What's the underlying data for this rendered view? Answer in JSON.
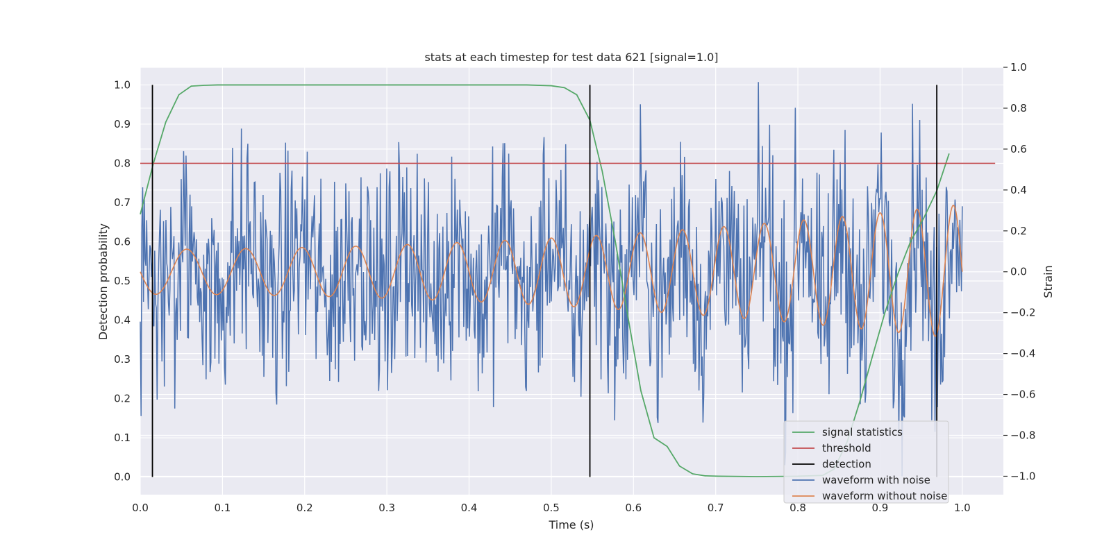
{
  "chart_data": {
    "type": "line",
    "title": "stats at each timestep for test data 621 [signal=1.0]",
    "xlabel": "Time (s)",
    "ylabel": "Detection probability",
    "ylabel_right": "Strain",
    "xlim": [
      0.0,
      1.05
    ],
    "ylim": [
      -0.045,
      1.045
    ],
    "ylim_right": [
      -1.09,
      1.0
    ],
    "grid": true,
    "legend_position": "lower-right",
    "x_ticks": [
      "0.0",
      "0.1",
      "0.2",
      "0.3",
      "0.4",
      "0.5",
      "0.6",
      "0.7",
      "0.8",
      "0.9",
      "1.0"
    ],
    "y_ticks": [
      "0.0",
      "0.1",
      "0.2",
      "0.3",
      "0.4",
      "0.5",
      "0.6",
      "0.7",
      "0.8",
      "0.9",
      "1.0"
    ],
    "y_ticks_right": [
      "−1.0",
      "−0.8",
      "−0.6",
      "−0.4",
      "−0.2",
      "0.0",
      "0.2",
      "0.4",
      "0.6",
      "0.8",
      "1.0"
    ],
    "colors": {
      "signal": "#55a868",
      "threshold": "#c44e52",
      "detection": "#000000",
      "noisy": "#4c72b0",
      "clean": "#dd8452",
      "plot_bg": "#eaeaf2",
      "grid": "#ffffff"
    },
    "series": [
      {
        "name": "signal statistics",
        "axis": "left",
        "x": [
          0.0,
          0.016,
          0.031,
          0.047,
          0.062,
          0.078,
          0.094,
          0.2,
          0.3,
          0.4,
          0.47,
          0.5,
          0.516,
          0.531,
          0.547,
          0.562,
          0.578,
          0.594,
          0.609,
          0.625,
          0.641,
          0.656,
          0.672,
          0.687,
          0.703,
          0.75,
          0.8,
          0.83,
          0.844,
          0.86,
          0.875,
          0.891,
          0.906,
          0.922,
          0.937,
          0.953,
          0.969,
          0.984
        ],
        "values": [
          0.67,
          0.8,
          0.905,
          0.975,
          0.997,
          0.999,
          1.0,
          1.0,
          1.0,
          1.0,
          1.0,
          0.998,
          0.993,
          0.975,
          0.91,
          0.78,
          0.6,
          0.4,
          0.22,
          0.1,
          0.078,
          0.028,
          0.008,
          0.003,
          0.002,
          0.001,
          0.002,
          0.004,
          0.02,
          0.09,
          0.19,
          0.31,
          0.42,
          0.52,
          0.6,
          0.66,
          0.73,
          0.825
        ]
      },
      {
        "name": "threshold",
        "axis": "left",
        "x": [
          0.0,
          1.04
        ],
        "values": [
          0.8,
          0.8
        ]
      },
      {
        "name": "detection",
        "axis": "left",
        "x": [
          0.0148,
          0.547,
          0.969
        ],
        "values": [
          1.0,
          1.0,
          1.0
        ]
      },
      {
        "name": "waveform with noise",
        "axis": "right",
        "x_range": [
          0.0,
          1.0
        ],
        "values_range": [
          -1.0,
          1.0
        ]
      },
      {
        "name": "waveform without noise",
        "axis": "right",
        "x_range": [
          0.0,
          1.0
        ],
        "values_range": [
          -0.36,
          0.35
        ]
      }
    ]
  },
  "legend": [
    {
      "label": "signal statistics",
      "color": "#55a868"
    },
    {
      "label": "threshold",
      "color": "#c44e52"
    },
    {
      "label": "detection",
      "color": "#000000"
    },
    {
      "label": "waveform with noise",
      "color": "#4c72b0"
    },
    {
      "label": "waveform without noise",
      "color": "#dd8452"
    }
  ]
}
